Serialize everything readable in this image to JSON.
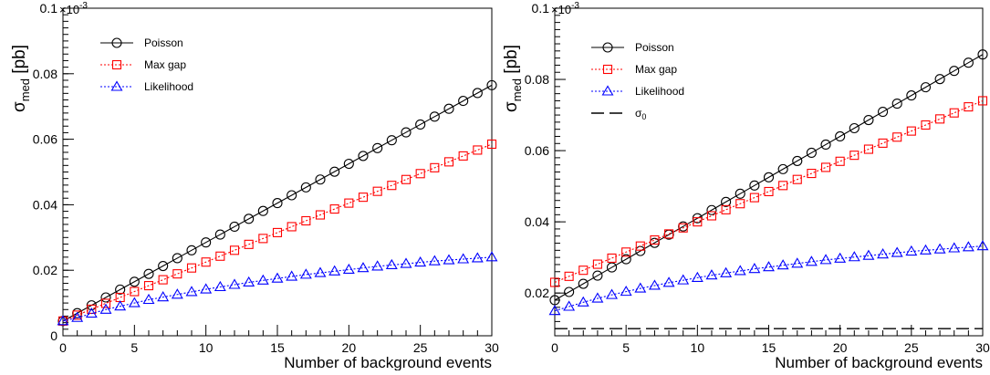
{
  "chart_data": [
    {
      "type": "line",
      "title": "",
      "xlabel": "Number of background events",
      "ylabel": "σmed [pb]",
      "ylabel_parts": {
        "main": "σ",
        "sub": "med",
        "unit": "[pb]"
      },
      "exponent_label": {
        "base": "×10",
        "exp": "-3"
      },
      "xlim": [
        0,
        30
      ],
      "ylim": [
        0,
        0.1
      ],
      "xticks": [
        0,
        5,
        10,
        15,
        20,
        25,
        30
      ],
      "yticks": [
        0,
        0.02,
        0.04,
        0.06,
        0.08,
        0.1
      ],
      "ytick_labels": [
        "0",
        "0.02",
        "0.04",
        "0.06",
        "0.08",
        "0.1"
      ],
      "grid": false,
      "legend": "top-left",
      "series": [
        {
          "name": "Poisson",
          "marker": "circle",
          "color": "#000000",
          "line": "solid",
          "x": [
            0,
            1,
            2,
            3,
            4,
            5,
            6,
            7,
            8,
            9,
            10,
            11,
            12,
            13,
            14,
            15,
            16,
            17,
            18,
            19,
            20,
            21,
            22,
            23,
            24,
            25,
            26,
            27,
            28,
            29,
            30
          ],
          "values": [
            0.0045,
            0.0069,
            0.0093,
            0.0117,
            0.0141,
            0.0165,
            0.0189,
            0.0213,
            0.0237,
            0.0261,
            0.0285,
            0.0309,
            0.0333,
            0.0357,
            0.0381,
            0.0405,
            0.0429,
            0.0453,
            0.0477,
            0.0501,
            0.0525,
            0.0549,
            0.0573,
            0.0597,
            0.0621,
            0.0645,
            0.0669,
            0.0693,
            0.0717,
            0.0741,
            0.0765
          ]
        },
        {
          "name": "Max gap",
          "marker": "square",
          "color": "#ff0000",
          "line": "dotted",
          "x": [
            0,
            1,
            2,
            3,
            4,
            5,
            6,
            7,
            8,
            9,
            10,
            11,
            12,
            13,
            14,
            15,
            16,
            17,
            18,
            19,
            20,
            21,
            22,
            23,
            24,
            25,
            26,
            27,
            28,
            29,
            30
          ],
          "values": [
            0.0045,
            0.0063,
            0.0081,
            0.0099,
            0.0117,
            0.0135,
            0.0153,
            0.0171,
            0.0189,
            0.0207,
            0.0225,
            0.0243,
            0.0261,
            0.0279,
            0.0297,
            0.0315,
            0.0333,
            0.0351,
            0.0369,
            0.0387,
            0.0405,
            0.0423,
            0.0441,
            0.0459,
            0.0477,
            0.0495,
            0.0513,
            0.0531,
            0.0549,
            0.0567,
            0.0585
          ]
        },
        {
          "name": "Likelihood",
          "marker": "triangle",
          "color": "#0000ff",
          "line": "dotted",
          "x": [
            0,
            1,
            2,
            3,
            4,
            5,
            6,
            7,
            8,
            9,
            10,
            11,
            12,
            13,
            14,
            15,
            16,
            17,
            18,
            19,
            20,
            21,
            22,
            23,
            24,
            25,
            26,
            27,
            28,
            29,
            30
          ],
          "values": [
            0.0045,
            0.0055,
            0.0068,
            0.008,
            0.009,
            0.01,
            0.011,
            0.0118,
            0.0126,
            0.0134,
            0.0142,
            0.0149,
            0.0156,
            0.0163,
            0.0169,
            0.0175,
            0.0181,
            0.0187,
            0.0192,
            0.0197,
            0.0202,
            0.0207,
            0.0212,
            0.0216,
            0.022,
            0.0224,
            0.0228,
            0.0231,
            0.0234,
            0.0237,
            0.024
          ]
        }
      ]
    },
    {
      "type": "line",
      "title": "",
      "xlabel": "Number of background events",
      "ylabel": "σmed [pb]",
      "ylabel_parts": {
        "main": "σ",
        "sub": "med",
        "unit": "[pb]"
      },
      "exponent_label": {
        "base": "×10",
        "exp": "-3"
      },
      "xlim": [
        0,
        30
      ],
      "ylim": [
        0.008,
        0.1
      ],
      "xticks": [
        0,
        5,
        10,
        15,
        20,
        25,
        30
      ],
      "yticks": [
        0.02,
        0.04,
        0.06,
        0.08,
        0.1
      ],
      "ytick_labels": [
        "0.02",
        "0.04",
        "0.06",
        "0.08",
        "0.1"
      ],
      "grid": false,
      "legend": "top-left",
      "series": [
        {
          "name": "Poisson",
          "marker": "circle",
          "color": "#000000",
          "line": "solid",
          "x": [
            0,
            1,
            2,
            3,
            4,
            5,
            6,
            7,
            8,
            9,
            10,
            11,
            12,
            13,
            14,
            15,
            16,
            17,
            18,
            19,
            20,
            21,
            22,
            23,
            24,
            25,
            26,
            27,
            28,
            29,
            30
          ],
          "values": [
            0.018,
            0.0203,
            0.0226,
            0.0249,
            0.0272,
            0.0295,
            0.0318,
            0.0341,
            0.0364,
            0.0387,
            0.041,
            0.0433,
            0.0456,
            0.0479,
            0.0502,
            0.0525,
            0.0548,
            0.0571,
            0.0594,
            0.0617,
            0.064,
            0.0663,
            0.0686,
            0.0709,
            0.0732,
            0.0755,
            0.0778,
            0.0801,
            0.0824,
            0.0847,
            0.087
          ]
        },
        {
          "name": "Max gap",
          "marker": "square",
          "color": "#ff0000",
          "line": "dotted",
          "x": [
            0,
            1,
            2,
            3,
            4,
            5,
            6,
            7,
            8,
            9,
            10,
            11,
            12,
            13,
            14,
            15,
            16,
            17,
            18,
            19,
            20,
            21,
            22,
            23,
            24,
            25,
            26,
            27,
            28,
            29,
            30
          ],
          "values": [
            0.023,
            0.0247,
            0.0264,
            0.0281,
            0.0298,
            0.0315,
            0.0332,
            0.0349,
            0.0366,
            0.0383,
            0.04,
            0.0417,
            0.0434,
            0.0451,
            0.0468,
            0.0485,
            0.0502,
            0.0519,
            0.0536,
            0.0553,
            0.057,
            0.0587,
            0.0604,
            0.0621,
            0.0638,
            0.0655,
            0.0672,
            0.0689,
            0.0706,
            0.0723,
            0.074
          ]
        },
        {
          "name": "Likelihood",
          "marker": "triangle",
          "color": "#0000ff",
          "line": "dotted",
          "x": [
            0,
            1,
            2,
            3,
            4,
            5,
            6,
            7,
            8,
            9,
            10,
            11,
            12,
            13,
            14,
            15,
            16,
            17,
            18,
            19,
            20,
            21,
            22,
            23,
            24,
            25,
            26,
            27,
            28,
            29,
            30
          ],
          "values": [
            0.015,
            0.0162,
            0.0174,
            0.0185,
            0.0195,
            0.0204,
            0.0213,
            0.0221,
            0.0229,
            0.0236,
            0.0243,
            0.025,
            0.0256,
            0.0262,
            0.0268,
            0.0273,
            0.0278,
            0.0283,
            0.0288,
            0.0293,
            0.0297,
            0.0301,
            0.0305,
            0.0309,
            0.0313,
            0.0317,
            0.032,
            0.0323,
            0.0326,
            0.0329,
            0.0332
          ]
        },
        {
          "name": "σ0",
          "name_parts": {
            "main": "σ",
            "sub": "0"
          },
          "marker": "none",
          "color": "#000000",
          "line": "dashed",
          "x": [
            0,
            30
          ],
          "values": [
            0.01,
            0.01
          ]
        }
      ]
    }
  ]
}
